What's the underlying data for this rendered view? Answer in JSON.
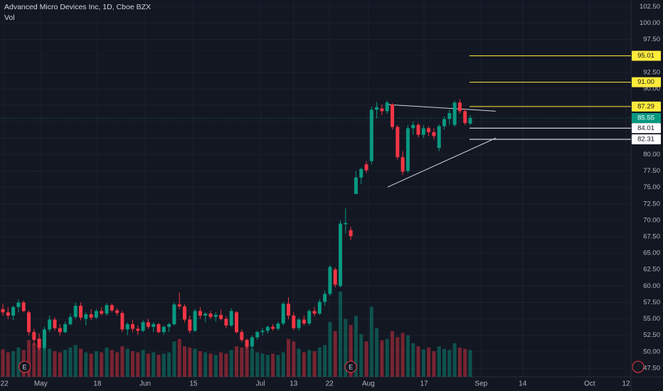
{
  "chart_data": {
    "type": "candlestick",
    "title": "Advanced Micro Devices Inc, 1D, Cboe BZX",
    "subtitle": "Vol",
    "up_color": "#089981",
    "down_color": "#f23645",
    "ohlc": [
      [
        56.5,
        57.3,
        55.5,
        56
      ],
      [
        56,
        56.8,
        55,
        55.5
      ],
      [
        55.5,
        57,
        54.8,
        56.8
      ],
      [
        56.8,
        58,
        56,
        57.5
      ],
      [
        57.5,
        57.8,
        56,
        56.2
      ],
      [
        56,
        56.3,
        52.5,
        53
      ],
      [
        53,
        53.5,
        51,
        51.8
      ],
      [
        52,
        52.8,
        50.2,
        50.6
      ],
      [
        50.6,
        53.8,
        50.2,
        53.4
      ],
      [
        53.4,
        55.5,
        53,
        54.9
      ],
      [
        54.9,
        55.2,
        53.2,
        53.6
      ],
      [
        53.6,
        54.2,
        52.5,
        53
      ],
      [
        53,
        54.6,
        52.8,
        54.2
      ],
      [
        54.2,
        55.8,
        54,
        55.3
      ],
      [
        55.3,
        57.5,
        55,
        57
      ],
      [
        57,
        57.5,
        54.8,
        55.2
      ],
      [
        55,
        56,
        54,
        55.7
      ],
      [
        55.7,
        56.5,
        54.8,
        55.2
      ],
      [
        55.2,
        56.5,
        55,
        56.2
      ],
      [
        56.2,
        56.8,
        55.5,
        55.8
      ],
      [
        55.8,
        57.4,
        55.5,
        57.1
      ],
      [
        57.1,
        57.3,
        56,
        56.3
      ],
      [
        56.3,
        56.6,
        55.5,
        55.9
      ],
      [
        55.9,
        56.2,
        53,
        53.4
      ],
      [
        53.4,
        54.5,
        52.5,
        54.2
      ],
      [
        54.2,
        54.8,
        53,
        53.5
      ],
      [
        53.5,
        54,
        52.6,
        53.2
      ],
      [
        53.2,
        54.8,
        53,
        54.5
      ],
      [
        54.5,
        55,
        53.5,
        53.8
      ],
      [
        53.8,
        54.5,
        53,
        54.2
      ],
      [
        54.2,
        54.4,
        52.8,
        53
      ],
      [
        53,
        54,
        52.6,
        53.8
      ],
      [
        53.8,
        54.4,
        53,
        54.2
      ],
      [
        54.2,
        57.5,
        54,
        57.2
      ],
      [
        57.2,
        59,
        56.5,
        56.9
      ],
      [
        56.9,
        57.2,
        54.5,
        54.9
      ],
      [
        54.9,
        55.5,
        52.8,
        53.2
      ],
      [
        53.2,
        56.5,
        53,
        56.2
      ],
      [
        56.2,
        56.8,
        55,
        55.5
      ],
      [
        55.5,
        56,
        54.5,
        55.8
      ],
      [
        55.8,
        56.2,
        55,
        55.3
      ],
      [
        55.3,
        56,
        54.6,
        55.6
      ],
      [
        55.6,
        56.4,
        54.8,
        55
      ],
      [
        55,
        55.4,
        53.6,
        54
      ],
      [
        54,
        56.6,
        53.8,
        56.2
      ],
      [
        56,
        56.2,
        52.8,
        53
      ],
      [
        53,
        53.4,
        51.5,
        51.8
      ],
      [
        51.8,
        52,
        50.5,
        50.8
      ],
      [
        50.8,
        52.5,
        50.4,
        52.2
      ],
      [
        52.2,
        53.2,
        51.8,
        53
      ],
      [
        53,
        53.6,
        52.5,
        53.2
      ],
      [
        53.2,
        54,
        52.8,
        53.8
      ],
      [
        53.8,
        54.2,
        53.2,
        53.5
      ],
      [
        53.5,
        54.6,
        53.2,
        54.3
      ],
      [
        54.3,
        57.6,
        54,
        57.3
      ],
      [
        57.3,
        58.3,
        55,
        55.5
      ],
      [
        55.5,
        56,
        53.3,
        53.6
      ],
      [
        53.6,
        55.2,
        53.2,
        54.9
      ],
      [
        54.9,
        55.5,
        54,
        54.3
      ],
      [
        54.3,
        56.5,
        54,
        56.2
      ],
      [
        56.2,
        56.8,
        55.4,
        55.8
      ],
      [
        55.8,
        58,
        55.6,
        57.6
      ],
      [
        57.6,
        59.3,
        57,
        58.8
      ],
      [
        58.8,
        63.2,
        58.5,
        62.9
      ],
      [
        62.5,
        62.8,
        59.8,
        60.2
      ],
      [
        60,
        70,
        59.8,
        69.5
      ],
      [
        69.4,
        71.8,
        68,
        69.6
      ],
      [
        68.5,
        69,
        67,
        67.6
      ],
      [
        74,
        77.5,
        74,
        76.5
      ],
      [
        76.5,
        78,
        75.5,
        77.8
      ],
      [
        78.5,
        79,
        77.2,
        77.6
      ],
      [
        79,
        87.3,
        78.5,
        86.8
      ],
      [
        86.8,
        88,
        85.5,
        87.2
      ],
      [
        87,
        87.6,
        86,
        86.6
      ],
      [
        86.6,
        88.2,
        86.2,
        87.9
      ],
      [
        87.6,
        87.8,
        83.8,
        84.2
      ],
      [
        84.2,
        84.5,
        79.2,
        79.6
      ],
      [
        79.6,
        80.5,
        76.9,
        77.4
      ],
      [
        77.5,
        84.5,
        77.2,
        84
      ],
      [
        84,
        85,
        83,
        84.5
      ],
      [
        84.5,
        84.8,
        82.6,
        83
      ],
      [
        83,
        84.5,
        82.5,
        84
      ],
      [
        84,
        84.3,
        82.8,
        83.4
      ],
      [
        83.4,
        84,
        82.3,
        82.8
      ],
      [
        81,
        84.6,
        80.5,
        84.3
      ],
      [
        84.3,
        85.8,
        83.8,
        85.4
      ],
      [
        85.4,
        86.8,
        84.5,
        86.3
      ],
      [
        84.5,
        88.2,
        84.2,
        87.9
      ],
      [
        87.9,
        88.4,
        86.2,
        86.6
      ],
      [
        86.6,
        87,
        84.5,
        84.8
      ],
      [
        84.7,
        86,
        84.5,
        85.55
      ]
    ],
    "volume": [
      45,
      40,
      42,
      48,
      44,
      60,
      55,
      62,
      50,
      46,
      42,
      40,
      44,
      48,
      52,
      46,
      40,
      38,
      42,
      40,
      48,
      44,
      40,
      50,
      46,
      42,
      40,
      44,
      38,
      40,
      36,
      38,
      40,
      58,
      62,
      50,
      48,
      46,
      42,
      40,
      38,
      36,
      40,
      38,
      44,
      50,
      48,
      52,
      46,
      40,
      38,
      36,
      38,
      36,
      40,
      62,
      58,
      46,
      40,
      44,
      42,
      48,
      52,
      90,
      75,
      140,
      95,
      85,
      100,
      70,
      58,
      115,
      80,
      60,
      62,
      75,
      65,
      72,
      68,
      55,
      50,
      45,
      48,
      42,
      50,
      46,
      44,
      55,
      48,
      46,
      44
    ],
    "ylim": [
      46.2,
      103.5
    ],
    "yticks": [
      {
        "value": 47.5,
        "label": "47.50"
      },
      {
        "value": 50,
        "label": "50.00"
      },
      {
        "value": 52.5,
        "label": "52.50"
      },
      {
        "value": 55,
        "label": "55.00"
      },
      {
        "value": 57.5,
        "label": "57.50"
      },
      {
        "value": 60,
        "label": "60.00"
      },
      {
        "value": 62.5,
        "label": "62.50"
      },
      {
        "value": 65,
        "label": "65.00"
      },
      {
        "value": 67.5,
        "label": "67.50"
      },
      {
        "value": 70,
        "label": "70.00"
      },
      {
        "value": 72.5,
        "label": "72.50"
      },
      {
        "value": 75,
        "label": "75.00"
      },
      {
        "value": 77.5,
        "label": "77.50"
      },
      {
        "value": 80,
        "label": "80.00"
      },
      {
        "value": 82.5,
        "label": "82.50"
      },
      {
        "value": 85,
        "label": "85.00"
      },
      {
        "value": 87.5,
        "label": "87.50"
      },
      {
        "value": 90,
        "label": "90.00"
      },
      {
        "value": 92.5,
        "label": "92.50"
      },
      {
        "value": 95,
        "label": "95.00"
      },
      {
        "value": 97.5,
        "label": "97.50"
      },
      {
        "value": 100,
        "label": "100.00"
      },
      {
        "value": 102.5,
        "label": "102.50"
      }
    ],
    "xticks": [
      {
        "value": 0.3,
        "label": "22"
      },
      {
        "value": 7.3,
        "label": "May"
      },
      {
        "value": 18.2,
        "label": "18"
      },
      {
        "value": 27.4,
        "label": "Jun"
      },
      {
        "value": 36.7,
        "label": "15"
      },
      {
        "value": 49.6,
        "label": "Jul"
      },
      {
        "value": 56,
        "label": "13"
      },
      {
        "value": 62.9,
        "label": "22"
      },
      {
        "value": 70.4,
        "label": "Aug"
      },
      {
        "value": 81.1,
        "label": "17"
      },
      {
        "value": 92.1,
        "label": "Sep"
      },
      {
        "value": 100.1,
        "label": "14"
      },
      {
        "value": 113,
        "label": "Oct"
      },
      {
        "value": 120,
        "label": "12"
      }
    ],
    "levels": [
      {
        "value": 95.01,
        "color": "#ffeb3b"
      },
      {
        "value": 91,
        "label": "91.00",
        "color": "#ffeb3b"
      },
      {
        "value": 87.29,
        "color": "#ffeb3b"
      },
      {
        "value": 84.01,
        "color": "#ffffff"
      },
      {
        "value": 82.31,
        "color": "#ffffff"
      }
    ],
    "last_price": 85.55,
    "trendlines": [
      {
        "start": [
          74.1,
          87.6
        ],
        "end": [
          94.9,
          86.6
        ]
      },
      {
        "start": [
          74.1,
          75.05
        ],
        "end": [
          94.9,
          82.5
        ]
      }
    ],
    "events": [
      {
        "label": "E",
        "bar": 4.2
      },
      {
        "label": "E",
        "bar": 67
      }
    ]
  }
}
